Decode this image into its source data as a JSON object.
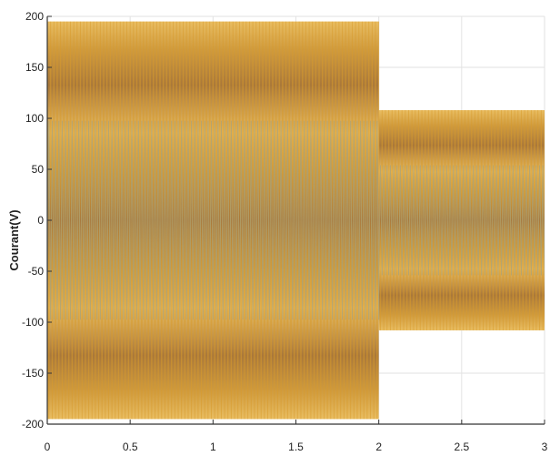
{
  "chart_data": {
    "type": "line",
    "title": "",
    "xlabel": "",
    "ylabel": "Courant(V)",
    "xlim": [
      0,
      3
    ],
    "ylim": [
      -200,
      200
    ],
    "xticks": [
      0,
      0.5,
      1,
      1.5,
      2,
      2.5,
      3
    ],
    "xtick_labels": [
      "0",
      "0.5",
      "1",
      "1.5",
      "2",
      "2.5",
      "3"
    ],
    "yticks": [
      -200,
      -150,
      -100,
      -50,
      0,
      50,
      100,
      150,
      200
    ],
    "ytick_labels": [
      "-200",
      "-150",
      "-100",
      "-50",
      "0",
      "50",
      "100",
      "150",
      "200"
    ],
    "grid": true,
    "legend": "none",
    "signal": {
      "waveform": "three-phase sinusoid",
      "frequency_hz": 50,
      "segments": [
        {
          "t_start": 0,
          "t_end": 2,
          "amplitude": 195
        },
        {
          "t_start": 2,
          "t_end": 3,
          "amplitude": 108
        }
      ]
    },
    "series": [
      {
        "phase_deg": 0,
        "color": "#d99a2b"
      },
      {
        "phase_deg": -120,
        "color": "#6f9bd1"
      },
      {
        "phase_deg": 120,
        "color": "#c7a449"
      }
    ],
    "colors": {
      "fill": "#cf9b3f",
      "band_dark": "#a9783a",
      "band_light": "#e9bd61",
      "grid": "#e2e2e2",
      "axis": "#333333"
    }
  }
}
